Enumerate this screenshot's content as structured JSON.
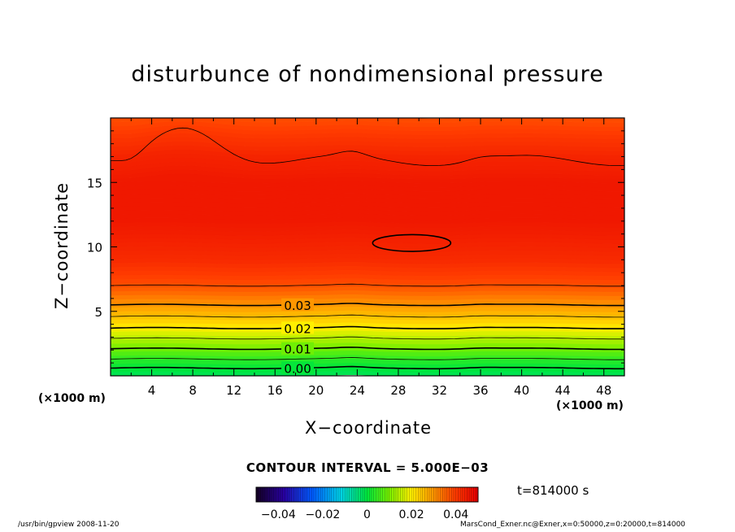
{
  "chart_data": {
    "type": "contour",
    "title": "disturbunce of nondimensional pressure",
    "xlabel": "X−coordinate",
    "ylabel": "Z−coordinate",
    "x_unit": "(×1000 m)",
    "xlim": [
      0,
      50
    ],
    "ylim": [
      0,
      20
    ],
    "x_ticks": [
      4,
      8,
      12,
      16,
      20,
      24,
      28,
      32,
      36,
      40,
      44,
      48
    ],
    "y_ticks": [
      5,
      10,
      15
    ],
    "contour_interval": 0.005,
    "contour_labels": [
      {
        "label": "0.00",
        "value": 0.0,
        "z": 0.6
      },
      {
        "label": "0.01",
        "value": 0.01,
        "z": 2.1
      },
      {
        "label": "0.02",
        "value": 0.02,
        "z": 3.7
      },
      {
        "label": "0.03",
        "value": 0.03,
        "z": 5.5
      }
    ],
    "closed_contour": {
      "x_center": 29.3,
      "z_center": 10.3,
      "x_halfwidth": 3.8,
      "z_halfheight": 0.65
    },
    "colorbar": {
      "min": -0.05,
      "max": 0.05,
      "tick_labels": [
        "−0.04",
        "−0.02",
        "0",
        "0.02",
        "0.04"
      ],
      "tick_values": [
        -0.04,
        -0.02,
        0,
        0.02,
        0.04
      ]
    }
  },
  "annotations": {
    "contour_interval_text": "CONTOUR INTERVAL = 5.000E−03",
    "time_text": "t=814000 s",
    "footer_left": "/usr/bin/gpview   2008-11-20",
    "footer_right": "MarsCond_Exner.nc@Exner,x=0:50000,z=0:20000,t=814000"
  }
}
